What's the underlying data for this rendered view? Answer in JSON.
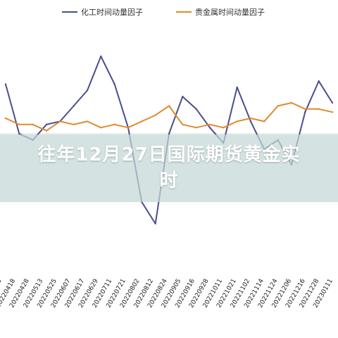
{
  "banner": {
    "title": "往年12月27日国际期货黄金实时"
  },
  "chart_data": {
    "type": "line",
    "title": "",
    "xlabel": "",
    "ylabel": "",
    "ylim": [
      -3,
      3
    ],
    "legend_position": "top",
    "grid": false,
    "x": [
      "20220406",
      "20220418",
      "20220428",
      "20220513",
      "20220525",
      "20220607",
      "20220617",
      "20220629",
      "20220711",
      "20220721",
      "20220802",
      "20220812",
      "20220824",
      "20220905",
      "20220916",
      "20220928",
      "20221011",
      "20221021",
      "20221102",
      "20221114",
      "20221124",
      "20221206",
      "20221216",
      "20221228",
      "20230111"
    ],
    "series": [
      {
        "name": "化工时间动量因子",
        "color": "#4a4e8f",
        "values": [
          1.6,
          0.0,
          -0.2,
          0.3,
          0.4,
          0.9,
          1.4,
          2.5,
          1.6,
          0.2,
          -2.2,
          -2.9,
          0.0,
          1.2,
          0.8,
          0.2,
          -0.3,
          1.5,
          0.4,
          -0.5,
          -0.2,
          -1.0,
          0.7,
          1.7,
          1.0
        ]
      },
      {
        "name": "贵金属时间动量因子",
        "color": "#e08a2c",
        "values": [
          0.5,
          0.3,
          0.3,
          0.1,
          0.4,
          0.3,
          0.4,
          0.2,
          0.3,
          0.2,
          0.4,
          0.6,
          0.9,
          0.3,
          0.2,
          0.3,
          0.2,
          0.4,
          0.5,
          0.4,
          0.9,
          1.0,
          0.8,
          0.8,
          0.7
        ]
      }
    ]
  }
}
